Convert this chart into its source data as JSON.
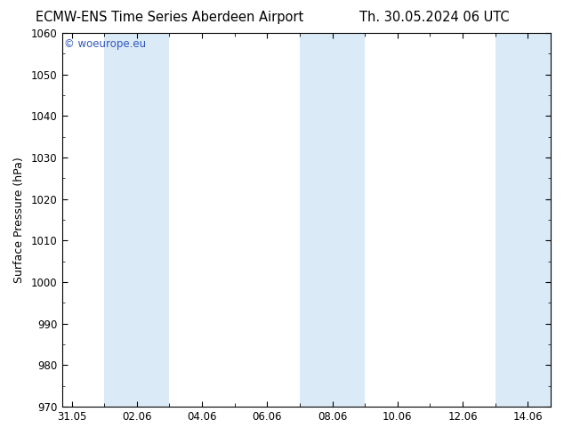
{
  "title_left": "ECMW-ENS Time Series Aberdeen Airport",
  "title_right": "Th. 30.05.2024 06 UTC",
  "ylabel": "Surface Pressure (hPa)",
  "ylim": [
    970,
    1060
  ],
  "yticks": [
    970,
    980,
    990,
    1000,
    1010,
    1020,
    1030,
    1040,
    1050,
    1060
  ],
  "xtick_labels": [
    "31.05",
    "02.06",
    "04.06",
    "06.06",
    "08.06",
    "10.06",
    "12.06",
    "14.06"
  ],
  "xtick_positions": [
    0,
    2,
    4,
    6,
    8,
    10,
    12,
    14
  ],
  "xlim": [
    -0.3,
    14.7
  ],
  "shade_bands": [
    {
      "x_start": 1.0,
      "x_end": 3.0,
      "color": "#daeaf6"
    },
    {
      "x_start": 7.0,
      "x_end": 9.0,
      "color": "#daeaf6"
    },
    {
      "x_start": 13.0,
      "x_end": 15.0,
      "color": "#daeaf6"
    }
  ],
  "watermark_text": "© woeurope.eu",
  "watermark_color": "#3355bb",
  "background_color": "#ffffff",
  "plot_bg_color": "#ffffff",
  "spine_color": "#000000",
  "tick_color": "#000000",
  "title_fontsize": 10.5,
  "ylabel_fontsize": 9,
  "tick_fontsize": 8.5,
  "watermark_fontsize": 8.5
}
